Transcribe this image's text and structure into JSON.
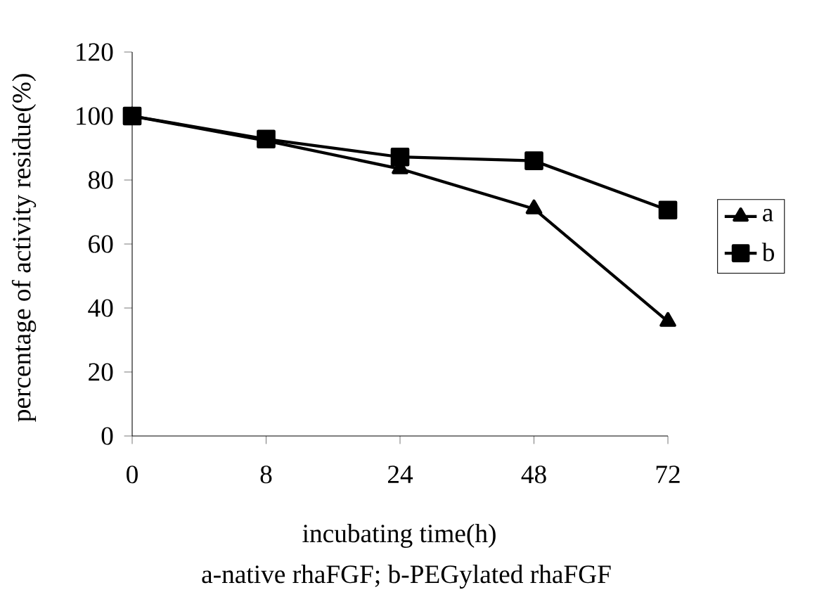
{
  "chart_data": {
    "type": "line",
    "xlabel": "incubating time(h)",
    "ylabel": "percentage of activity residue(%)",
    "categories": [
      "0",
      "8",
      "24",
      "48",
      "72"
    ],
    "series": [
      {
        "name": "a",
        "color": "#000000",
        "marker": "triangle",
        "values": [
          100,
          92.3,
          83.5,
          71,
          35.8
        ]
      },
      {
        "name": "b",
        "color": "#000000",
        "marker": "square",
        "values": [
          100,
          92.8,
          87.2,
          86,
          70.6
        ]
      }
    ],
    "ylim": [
      0,
      120
    ],
    "yticks": [
      0,
      20,
      40,
      60,
      80,
      100,
      120
    ],
    "grid": false,
    "legend": "right",
    "line_style": "solid",
    "annotations": [
      "a-native rhaFGF;    b-PEGylated rhaFGF"
    ]
  }
}
